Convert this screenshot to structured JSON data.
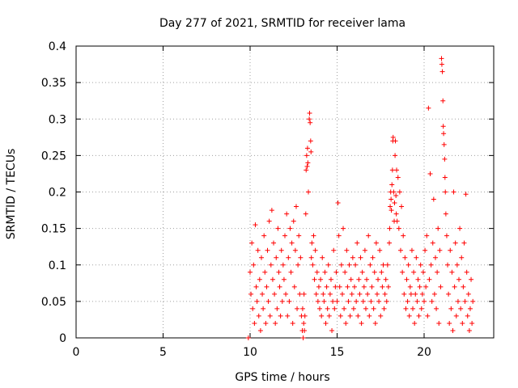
{
  "chart_data": {
    "type": "scatter",
    "title": "Day 277 of 2021, SRMTID for receiver lama",
    "xlabel": "GPS time / hours",
    "ylabel": "SRMTID / TECUs",
    "xlim": [
      0,
      24
    ],
    "ylim": [
      0,
      0.4
    ],
    "xticks": [
      0,
      5,
      10,
      15,
      20
    ],
    "yticks": [
      0,
      0.05,
      0.1,
      0.15,
      0.2,
      0.25,
      0.3,
      0.35,
      0.4
    ],
    "xtick_labels": [
      "0",
      "5",
      "10",
      "15",
      "20"
    ],
    "ytick_labels": [
      "0",
      "0.05",
      "0.1",
      "0.15",
      "0.2",
      "0.25",
      "0.3",
      "0.35",
      "0.4"
    ],
    "grid": true,
    "marker": "+",
    "series": [
      {
        "name": "SRMTID",
        "color": "#ff0000",
        "points": [
          [
            9.9,
            0.0
          ],
          [
            10.0,
            0.09
          ],
          [
            10.05,
            0.06
          ],
          [
            10.1,
            0.13
          ],
          [
            10.15,
            0.04
          ],
          [
            10.2,
            0.1
          ],
          [
            10.25,
            0.02
          ],
          [
            10.3,
            0.155
          ],
          [
            10.35,
            0.07
          ],
          [
            10.4,
            0.05
          ],
          [
            10.45,
            0.12
          ],
          [
            10.5,
            0.03
          ],
          [
            10.55,
            0.08
          ],
          [
            10.6,
            0.01
          ],
          [
            10.65,
            0.11
          ],
          [
            10.7,
            0.06
          ],
          [
            10.75,
            0.04
          ],
          [
            10.8,
            0.14
          ],
          [
            10.85,
            0.09
          ],
          [
            10.9,
            0.02
          ],
          [
            10.95,
            0.07
          ],
          [
            11.0,
            0.12
          ],
          [
            11.05,
            0.05
          ],
          [
            11.1,
            0.16
          ],
          [
            11.15,
            0.03
          ],
          [
            11.2,
            0.1
          ],
          [
            11.25,
            0.175
          ],
          [
            11.3,
            0.08
          ],
          [
            11.35,
            0.13
          ],
          [
            11.4,
            0.06
          ],
          [
            11.45,
            0.02
          ],
          [
            11.5,
            0.11
          ],
          [
            11.55,
            0.04
          ],
          [
            11.6,
            0.15
          ],
          [
            11.65,
            0.09
          ],
          [
            11.7,
            0.07
          ],
          [
            11.75,
            0.03
          ],
          [
            11.8,
            0.12
          ],
          [
            11.85,
            0.05
          ],
          [
            11.9,
            0.1
          ],
          [
            11.95,
            0.08
          ],
          [
            12.0,
            0.14
          ],
          [
            12.05,
            0.06
          ],
          [
            12.1,
            0.17
          ],
          [
            12.15,
            0.03
          ],
          [
            12.2,
            0.11
          ],
          [
            12.25,
            0.05
          ],
          [
            12.3,
            0.15
          ],
          [
            12.35,
            0.09
          ],
          [
            12.4,
            0.13
          ],
          [
            12.45,
            0.02
          ],
          [
            12.5,
            0.16
          ],
          [
            12.55,
            0.07
          ],
          [
            12.6,
            0.12
          ],
          [
            12.65,
            0.18
          ],
          [
            12.7,
            0.04
          ],
          [
            12.75,
            0.1
          ],
          [
            12.8,
            0.14
          ],
          [
            12.85,
            0.06
          ],
          [
            12.9,
            0.11
          ],
          [
            12.95,
            0.03
          ],
          [
            13.0,
            0.01
          ],
          [
            13.02,
            0.04
          ],
          [
            13.05,
            0.0
          ],
          [
            13.08,
            0.02
          ],
          [
            13.1,
            0.06
          ],
          [
            13.12,
            0.01
          ],
          [
            13.15,
            0.03
          ],
          [
            13.2,
            0.17
          ],
          [
            13.22,
            0.23
          ],
          [
            13.25,
            0.25
          ],
          [
            13.28,
            0.235
          ],
          [
            13.3,
            0.26
          ],
          [
            13.32,
            0.24
          ],
          [
            13.35,
            0.2
          ],
          [
            13.4,
            0.3
          ],
          [
            13.42,
            0.308
          ],
          [
            13.45,
            0.295
          ],
          [
            13.48,
            0.27
          ],
          [
            13.5,
            0.255
          ],
          [
            13.52,
            0.11
          ],
          [
            13.55,
            0.13
          ],
          [
            13.6,
            0.1
          ],
          [
            13.65,
            0.14
          ],
          [
            13.7,
            0.08
          ],
          [
            13.75,
            0.12
          ],
          [
            13.8,
            0.06
          ],
          [
            13.85,
            0.09
          ],
          [
            13.9,
            0.05
          ],
          [
            13.95,
            0.07
          ],
          [
            14.0,
            0.04
          ],
          [
            14.05,
            0.08
          ],
          [
            14.1,
            0.03
          ],
          [
            14.15,
            0.11
          ],
          [
            14.2,
            0.06
          ],
          [
            14.25,
            0.05
          ],
          [
            14.3,
            0.09
          ],
          [
            14.35,
            0.02
          ],
          [
            14.4,
            0.07
          ],
          [
            14.45,
            0.04
          ],
          [
            14.5,
            0.1
          ],
          [
            14.55,
            0.03
          ],
          [
            14.6,
            0.06
          ],
          [
            14.65,
            0.08
          ],
          [
            14.7,
            0.01
          ],
          [
            14.75,
            0.05
          ],
          [
            14.8,
            0.12
          ],
          [
            14.85,
            0.04
          ],
          [
            14.9,
            0.07
          ],
          [
            14.95,
            0.09
          ],
          [
            15.0,
            0.05
          ],
          [
            15.05,
            0.185
          ],
          [
            15.1,
            0.14
          ],
          [
            15.15,
            0.07
          ],
          [
            15.2,
            0.03
          ],
          [
            15.25,
            0.1
          ],
          [
            15.3,
            0.06
          ],
          [
            15.35,
            0.15
          ],
          [
            15.4,
            0.04
          ],
          [
            15.45,
            0.09
          ],
          [
            15.5,
            0.02
          ],
          [
            15.55,
            0.12
          ],
          [
            15.6,
            0.07
          ],
          [
            15.65,
            0.05
          ],
          [
            15.7,
            0.1
          ],
          [
            15.75,
            0.03
          ],
          [
            15.8,
            0.08
          ],
          [
            15.85,
            0.06
          ],
          [
            15.9,
            0.11
          ],
          [
            15.95,
            0.04
          ],
          [
            16.0,
            0.07
          ],
          [
            16.05,
            0.1
          ],
          [
            16.1,
            0.05
          ],
          [
            16.15,
            0.13
          ],
          [
            16.2,
            0.03
          ],
          [
            16.25,
            0.08
          ],
          [
            16.3,
            0.06
          ],
          [
            16.35,
            0.11
          ],
          [
            16.4,
            0.02
          ],
          [
            16.45,
            0.09
          ],
          [
            16.5,
            0.05
          ],
          [
            16.55,
            0.07
          ],
          [
            16.6,
            0.12
          ],
          [
            16.65,
            0.04
          ],
          [
            16.7,
            0.08
          ],
          [
            16.75,
            0.06
          ],
          [
            16.8,
            0.14
          ],
          [
            16.85,
            0.03
          ],
          [
            16.9,
            0.1
          ],
          [
            16.95,
            0.05
          ],
          [
            17.0,
            0.07
          ],
          [
            17.05,
            0.11
          ],
          [
            17.1,
            0.04
          ],
          [
            17.15,
            0.09
          ],
          [
            17.2,
            0.02
          ],
          [
            17.25,
            0.13
          ],
          [
            17.3,
            0.06
          ],
          [
            17.35,
            0.08
          ],
          [
            17.4,
            0.05
          ],
          [
            17.45,
            0.12
          ],
          [
            17.5,
            0.03
          ],
          [
            17.55,
            0.09
          ],
          [
            17.6,
            0.07
          ],
          [
            17.65,
            0.1
          ],
          [
            17.7,
            0.04
          ],
          [
            17.75,
            0.06
          ],
          [
            17.8,
            0.08
          ],
          [
            17.85,
            0.05
          ],
          [
            17.9,
            0.1
          ],
          [
            17.95,
            0.07
          ],
          [
            18.0,
            0.13
          ],
          [
            18.02,
            0.15
          ],
          [
            18.05,
            0.18
          ],
          [
            18.08,
            0.2
          ],
          [
            18.1,
            0.19
          ],
          [
            18.12,
            0.175
          ],
          [
            18.15,
            0.21
          ],
          [
            18.18,
            0.23
          ],
          [
            18.2,
            0.27
          ],
          [
            18.22,
            0.275
          ],
          [
            18.25,
            0.2
          ],
          [
            18.28,
            0.16
          ],
          [
            18.3,
            0.185
          ],
          [
            18.33,
            0.25
          ],
          [
            18.35,
            0.27
          ],
          [
            18.38,
            0.195
          ],
          [
            18.4,
            0.17
          ],
          [
            18.42,
            0.23
          ],
          [
            18.45,
            0.16
          ],
          [
            18.5,
            0.22
          ],
          [
            18.55,
            0.15
          ],
          [
            18.6,
            0.2
          ],
          [
            18.65,
            0.12
          ],
          [
            18.7,
            0.18
          ],
          [
            18.75,
            0.09
          ],
          [
            18.8,
            0.14
          ],
          [
            18.85,
            0.06
          ],
          [
            18.9,
            0.11
          ],
          [
            18.95,
            0.04
          ],
          [
            19.0,
            0.08
          ],
          [
            19.05,
            0.05
          ],
          [
            19.1,
            0.1
          ],
          [
            19.15,
            0.03
          ],
          [
            19.2,
            0.07
          ],
          [
            19.25,
            0.06
          ],
          [
            19.3,
            0.12
          ],
          [
            19.35,
            0.04
          ],
          [
            19.4,
            0.09
          ],
          [
            19.45,
            0.02
          ],
          [
            19.5,
            0.06
          ],
          [
            19.55,
            0.11
          ],
          [
            19.6,
            0.05
          ],
          [
            19.65,
            0.08
          ],
          [
            19.7,
            0.03
          ],
          [
            19.75,
            0.07
          ],
          [
            19.8,
            0.1
          ],
          [
            19.85,
            0.04
          ],
          [
            19.9,
            0.06
          ],
          [
            19.95,
            0.09
          ],
          [
            20.0,
            0.05
          ],
          [
            20.05,
            0.12
          ],
          [
            20.1,
            0.07
          ],
          [
            20.15,
            0.14
          ],
          [
            20.2,
            0.03
          ],
          [
            20.25,
            0.315
          ],
          [
            20.3,
            0.08
          ],
          [
            20.35,
            0.225
          ],
          [
            20.4,
            0.1
          ],
          [
            20.45,
            0.05
          ],
          [
            20.5,
            0.13
          ],
          [
            20.55,
            0.19
          ],
          [
            20.6,
            0.06
          ],
          [
            20.65,
            0.11
          ],
          [
            20.7,
            0.04
          ],
          [
            20.75,
            0.09
          ],
          [
            20.8,
            0.15
          ],
          [
            20.85,
            0.02
          ],
          [
            20.9,
            0.12
          ],
          [
            20.95,
            0.07
          ],
          [
            21.0,
            0.383
          ],
          [
            21.02,
            0.375
          ],
          [
            21.05,
            0.365
          ],
          [
            21.08,
            0.325
          ],
          [
            21.1,
            0.29
          ],
          [
            21.12,
            0.28
          ],
          [
            21.15,
            0.265
          ],
          [
            21.18,
            0.245
          ],
          [
            21.2,
            0.22
          ],
          [
            21.22,
            0.2
          ],
          [
            21.25,
            0.17
          ],
          [
            21.3,
            0.14
          ],
          [
            21.35,
            0.1
          ],
          [
            21.4,
            0.06
          ],
          [
            21.45,
            0.02
          ],
          [
            21.5,
            0.12
          ],
          [
            21.55,
            0.04
          ],
          [
            21.6,
            0.09
          ],
          [
            21.65,
            0.01
          ],
          [
            21.7,
            0.2
          ],
          [
            21.75,
            0.07
          ],
          [
            21.8,
            0.13
          ],
          [
            21.85,
            0.03
          ],
          [
            21.9,
            0.1
          ],
          [
            21.95,
            0.05
          ],
          [
            22.0,
            0.08
          ],
          [
            22.05,
            0.15
          ],
          [
            22.1,
            0.04
          ],
          [
            22.15,
            0.11
          ],
          [
            22.2,
            0.02
          ],
          [
            22.25,
            0.07
          ],
          [
            22.3,
            0.13
          ],
          [
            22.35,
            0.05
          ],
          [
            22.4,
            0.197
          ],
          [
            22.45,
            0.09
          ],
          [
            22.5,
            0.03
          ],
          [
            22.55,
            0.06
          ],
          [
            22.6,
            0.01
          ],
          [
            22.65,
            0.04
          ],
          [
            22.7,
            0.08
          ],
          [
            22.75,
            0.02
          ],
          [
            22.8,
            0.05
          ]
        ]
      }
    ]
  }
}
